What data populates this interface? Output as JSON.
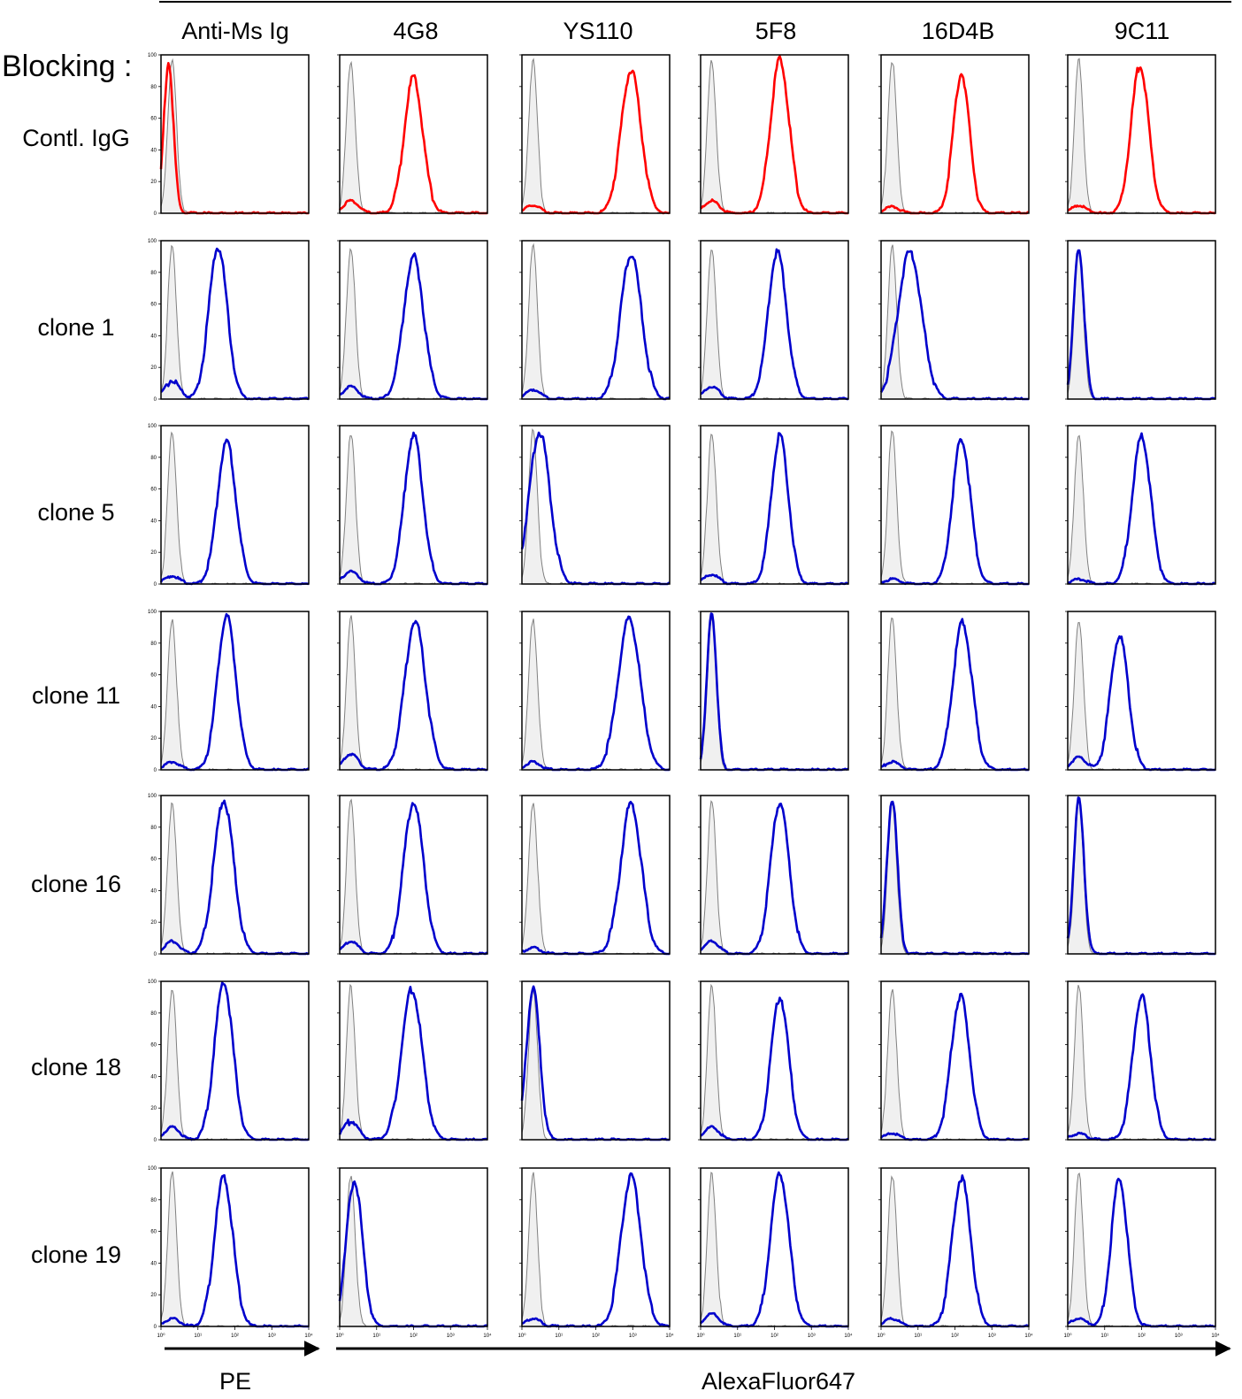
{
  "blocking_label": "Blocking :",
  "columns": [
    "Anti-Ms Ig",
    "4G8",
    "YS110",
    "5F8",
    "16D4B",
    "9C11"
  ],
  "rows": [
    "Contl. IgG",
    "clone 1",
    "clone 5",
    "clone 11",
    "clone 16",
    "clone 18",
    "clone 19"
  ],
  "x_axis_labels": [
    "PE",
    "AlexaFluor647"
  ],
  "y_ticks": [
    "0",
    "20",
    "40",
    "60",
    "80",
    "100"
  ],
  "x_ticks": [
    "10⁰",
    "10¹",
    "10²",
    "10³",
    "10⁴"
  ],
  "colors": {
    "control": "#ff0000",
    "test": "#0000cc",
    "isotype_line": "#808080",
    "isotype_fill": "#f0f0f0"
  },
  "chart_data": {
    "type": "histogram-grid",
    "x_scale": "log",
    "xlim": [
      1,
      10000
    ],
    "ylim": [
      0,
      100
    ],
    "note_unit": "peak positions in fluorescence units (log10 axis)",
    "isotype_peak": 2,
    "panels": [
      [
        {
          "peak": 1.6,
          "h": 95,
          "w": 0.13,
          "low": 0
        },
        {
          "peak": 100,
          "h": 86,
          "w": 0.25,
          "low": 8
        },
        {
          "peak": 900,
          "h": 90,
          "w": 0.27,
          "low": 5
        },
        {
          "peak": 140,
          "h": 97,
          "w": 0.25,
          "low": 8
        },
        {
          "peak": 150,
          "h": 88,
          "w": 0.22,
          "low": 4
        },
        {
          "peak": 90,
          "h": 93,
          "w": 0.24,
          "low": 5
        }
      ],
      [
        {
          "peak": 35,
          "h": 96,
          "w": 0.25,
          "low": 12
        },
        {
          "peak": 100,
          "h": 90,
          "w": 0.27,
          "low": 8
        },
        {
          "peak": 900,
          "h": 92,
          "w": 0.28,
          "low": 6
        },
        {
          "peak": 120,
          "h": 93,
          "w": 0.25,
          "low": 8
        },
        {
          "peak": 6,
          "h": 93,
          "w": 0.32,
          "low": 0
        },
        {
          "peak": 2,
          "h": 95,
          "w": 0.14,
          "low": 0
        }
      ],
      [
        {
          "peak": 60,
          "h": 90,
          "w": 0.25,
          "low": 5
        },
        {
          "peak": 100,
          "h": 94,
          "w": 0.25,
          "low": 8
        },
        {
          "peak": 3,
          "h": 96,
          "w": 0.28,
          "low": 0
        },
        {
          "peak": 140,
          "h": 94,
          "w": 0.23,
          "low": 6
        },
        {
          "peak": 150,
          "h": 92,
          "w": 0.24,
          "low": 3
        },
        {
          "peak": 100,
          "h": 93,
          "w": 0.25,
          "low": 3
        }
      ],
      [
        {
          "peak": 60,
          "h": 97,
          "w": 0.25,
          "low": 5
        },
        {
          "peak": 110,
          "h": 94,
          "w": 0.28,
          "low": 10
        },
        {
          "peak": 800,
          "h": 95,
          "w": 0.3,
          "low": 5
        },
        {
          "peak": 2,
          "h": 100,
          "w": 0.13,
          "low": 0
        },
        {
          "peak": 160,
          "h": 93,
          "w": 0.26,
          "low": 5
        },
        {
          "peak": 25,
          "h": 85,
          "w": 0.24,
          "low": 8
        }
      ],
      [
        {
          "peak": 50,
          "h": 97,
          "w": 0.27,
          "low": 8
        },
        {
          "peak": 100,
          "h": 96,
          "w": 0.27,
          "low": 8
        },
        {
          "peak": 900,
          "h": 95,
          "w": 0.28,
          "low": 4
        },
        {
          "peak": 140,
          "h": 96,
          "w": 0.25,
          "low": 8
        },
        {
          "peak": 2,
          "h": 98,
          "w": 0.14,
          "low": 0
        },
        {
          "peak": 2,
          "h": 97,
          "w": 0.14,
          "low": 0
        }
      ],
      [
        {
          "peak": 50,
          "h": 99,
          "w": 0.25,
          "low": 8
        },
        {
          "peak": 90,
          "h": 95,
          "w": 0.28,
          "low": 12
        },
        {
          "peak": 2,
          "h": 96,
          "w": 0.18,
          "low": 0
        },
        {
          "peak": 140,
          "h": 90,
          "w": 0.24,
          "low": 8
        },
        {
          "peak": 140,
          "h": 91,
          "w": 0.25,
          "low": 4
        },
        {
          "peak": 100,
          "h": 91,
          "w": 0.24,
          "low": 4
        }
      ],
      [
        {
          "peak": 50,
          "h": 94,
          "w": 0.25,
          "low": 5
        },
        {
          "peak": 2.5,
          "h": 92,
          "w": 0.22,
          "low": 0
        },
        {
          "peak": 900,
          "h": 95,
          "w": 0.27,
          "low": 5
        },
        {
          "peak": 140,
          "h": 96,
          "w": 0.25,
          "low": 8
        },
        {
          "peak": 150,
          "h": 94,
          "w": 0.25,
          "low": 5
        },
        {
          "peak": 25,
          "h": 93,
          "w": 0.22,
          "low": 5
        }
      ]
    ]
  }
}
